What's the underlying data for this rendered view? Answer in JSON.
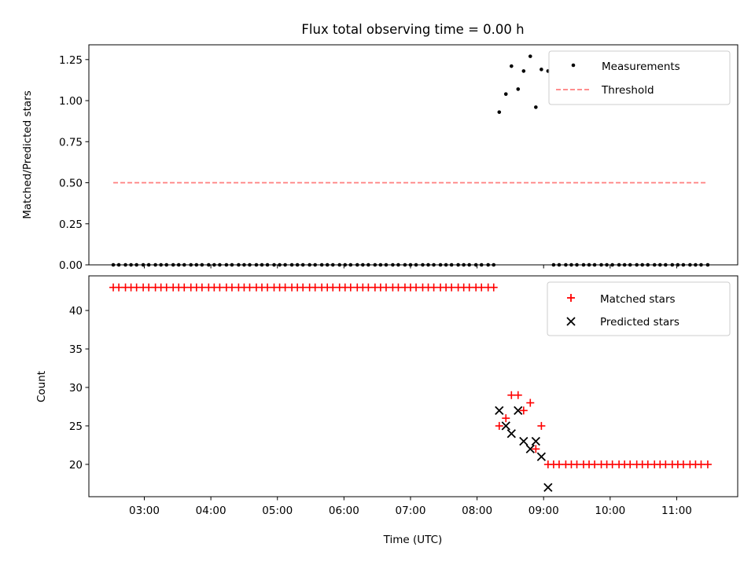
{
  "chart_data": [
    {
      "type": "scatter",
      "title": "Flux total observing time = 0.00 h",
      "xlabel": "",
      "ylabel": "Matched/Predicted stars",
      "ylim": [
        0,
        1.34
      ],
      "xlim": [
        "02:10",
        "11:55"
      ],
      "yticks": [
        "0.00",
        "0.25",
        "0.50",
        "0.75",
        "1.00",
        "1.25"
      ],
      "grid": false,
      "legend": "top-right",
      "series": [
        {
          "name": "Measurements",
          "marker": "dot",
          "color": "#000000",
          "x": [
            "02:32",
            "02:37",
            "02:43",
            "02:48",
            "02:53",
            "02:59",
            "03:04",
            "03:10",
            "03:15",
            "03:20",
            "03:26",
            "03:31",
            "03:36",
            "03:42",
            "03:47",
            "03:52",
            "03:58",
            "04:03",
            "04:08",
            "04:14",
            "04:19",
            "04:25",
            "04:30",
            "04:35",
            "04:41",
            "04:46",
            "04:51",
            "04:57",
            "05:02",
            "05:07",
            "05:13",
            "05:18",
            "05:23",
            "05:29",
            "05:34",
            "05:40",
            "05:45",
            "05:50",
            "05:56",
            "06:01",
            "06:06",
            "06:12",
            "06:17",
            "06:22",
            "06:28",
            "06:33",
            "06:38",
            "06:44",
            "06:49",
            "06:55",
            "07:00",
            "07:05",
            "07:11",
            "07:16",
            "07:21",
            "07:27",
            "07:32",
            "07:37",
            "07:43",
            "07:48",
            "07:53",
            "07:59",
            "08:04",
            "08:10",
            "08:15",
            "08:20",
            "08:26",
            "08:31",
            "08:37",
            "08:42",
            "08:48",
            "08:53",
            "08:58",
            "09:04",
            "09:09",
            "09:14",
            "09:20",
            "09:25",
            "09:30",
            "09:36",
            "09:41",
            "09:46",
            "09:52",
            "09:57",
            "10:02",
            "10:08",
            "10:13",
            "10:18",
            "10:24",
            "10:29",
            "10:34",
            "10:40",
            "10:45",
            "10:50",
            "10:56",
            "11:01",
            "11:06",
            "11:12",
            "11:17",
            "11:22",
            "11:28"
          ],
          "y": [
            0,
            0,
            0,
            0,
            0,
            0,
            0,
            0,
            0,
            0,
            0,
            0,
            0,
            0,
            0,
            0,
            0,
            0,
            0,
            0,
            0,
            0,
            0,
            0,
            0,
            0,
            0,
            0,
            0,
            0,
            0,
            0,
            0,
            0,
            0,
            0,
            0,
            0,
            0,
            0,
            0,
            0,
            0,
            0,
            0,
            0,
            0,
            0,
            0,
            0,
            0,
            0,
            0,
            0,
            0,
            0,
            0,
            0,
            0,
            0,
            0,
            0,
            0,
            0,
            0,
            0.93,
            1.04,
            1.21,
            1.07,
            1.18,
            1.27,
            0.96,
            1.19,
            1.18,
            0,
            0,
            0,
            0,
            0,
            0,
            0,
            0,
            0,
            0,
            0,
            0,
            0,
            0,
            0,
            0,
            0,
            0,
            0,
            0,
            0,
            0,
            0,
            0,
            0,
            0,
            0
          ]
        },
        {
          "name": "Threshold",
          "marker": "dashed-line",
          "color": "#ff7f7f",
          "x": [
            "02:32",
            "11:28"
          ],
          "y": [
            0.5,
            0.5
          ]
        }
      ]
    },
    {
      "type": "scatter",
      "title": "",
      "xlabel": "Time (UTC)",
      "ylabel": "Count",
      "ylim": [
        15.8,
        44.5
      ],
      "xlim": [
        "02:10",
        "11:55"
      ],
      "xticks": [
        "03:00",
        "04:00",
        "05:00",
        "06:00",
        "07:00",
        "08:00",
        "09:00",
        "10:00",
        "11:00"
      ],
      "yticks": [
        "20",
        "25",
        "30",
        "35",
        "40"
      ],
      "grid": false,
      "legend": "top-right",
      "series": [
        {
          "name": "Matched stars",
          "marker": "plus",
          "color": "#ff0000",
          "x": [
            "02:32",
            "02:37",
            "02:43",
            "02:48",
            "02:53",
            "02:59",
            "03:04",
            "03:10",
            "03:15",
            "03:20",
            "03:26",
            "03:31",
            "03:36",
            "03:42",
            "03:47",
            "03:52",
            "03:58",
            "04:03",
            "04:08",
            "04:14",
            "04:19",
            "04:25",
            "04:30",
            "04:35",
            "04:41",
            "04:46",
            "04:51",
            "04:57",
            "05:02",
            "05:07",
            "05:13",
            "05:18",
            "05:23",
            "05:29",
            "05:34",
            "05:40",
            "05:45",
            "05:50",
            "05:56",
            "06:01",
            "06:06",
            "06:12",
            "06:17",
            "06:22",
            "06:28",
            "06:33",
            "06:38",
            "06:44",
            "06:49",
            "06:55",
            "07:00",
            "07:05",
            "07:11",
            "07:16",
            "07:21",
            "07:27",
            "07:32",
            "07:37",
            "07:43",
            "07:48",
            "07:53",
            "07:59",
            "08:04",
            "08:10",
            "08:15",
            "08:20",
            "08:26",
            "08:31",
            "08:37",
            "08:42",
            "08:48",
            "08:53",
            "08:58",
            "09:04",
            "09:09",
            "09:14",
            "09:20",
            "09:25",
            "09:30",
            "09:36",
            "09:41",
            "09:46",
            "09:52",
            "09:57",
            "10:02",
            "10:08",
            "10:13",
            "10:18",
            "10:24",
            "10:29",
            "10:34",
            "10:40",
            "10:45",
            "10:50",
            "10:56",
            "11:01",
            "11:06",
            "11:12",
            "11:17",
            "11:22",
            "11:28"
          ],
          "y": [
            43,
            43,
            43,
            43,
            43,
            43,
            43,
            43,
            43,
            43,
            43,
            43,
            43,
            43,
            43,
            43,
            43,
            43,
            43,
            43,
            43,
            43,
            43,
            43,
            43,
            43,
            43,
            43,
            43,
            43,
            43,
            43,
            43,
            43,
            43,
            43,
            43,
            43,
            43,
            43,
            43,
            43,
            43,
            43,
            43,
            43,
            43,
            43,
            43,
            43,
            43,
            43,
            43,
            43,
            43,
            43,
            43,
            43,
            43,
            43,
            43,
            43,
            43,
            43,
            43,
            25,
            26,
            29,
            29,
            27,
            28,
            22,
            25,
            20,
            20,
            20,
            20,
            20,
            20,
            20,
            20,
            20,
            20,
            20,
            20,
            20,
            20,
            20,
            20,
            20,
            20,
            20,
            20,
            20,
            20,
            20,
            20,
            20,
            20,
            20,
            20
          ]
        },
        {
          "name": "Predicted stars",
          "marker": "x",
          "color": "#000000",
          "x": [
            "08:20",
            "08:26",
            "08:31",
            "08:37",
            "08:42",
            "08:48",
            "08:53",
            "08:58"
          ],
          "y": [
            27,
            25,
            24,
            27,
            23,
            22,
            23,
            21
          ]
        },
        {
          "name": "",
          "marker": "x",
          "color": "#000000",
          "x": [
            "09:04"
          ],
          "y": [
            17
          ]
        }
      ]
    }
  ]
}
